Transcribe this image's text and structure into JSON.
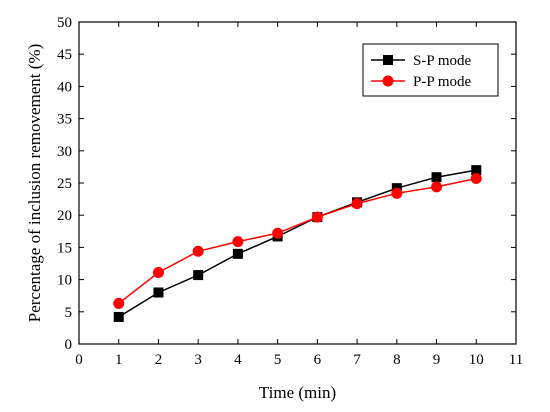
{
  "chart_data": {
    "type": "line",
    "xlabel": "Time (min)",
    "ylabel": "Percentage of inclusion removement (%)",
    "xlim": [
      0,
      11
    ],
    "ylim": [
      0,
      50
    ],
    "xticks": [
      0,
      1,
      2,
      3,
      4,
      5,
      6,
      7,
      8,
      9,
      10,
      11
    ],
    "yticks": [
      0,
      5,
      10,
      15,
      20,
      25,
      30,
      35,
      40,
      45,
      50
    ],
    "grid": false,
    "legend_position": "top-right",
    "series": [
      {
        "name": "S-P mode",
        "color": "#000000",
        "marker": "square",
        "x": [
          1,
          2,
          3,
          4,
          5,
          6,
          7,
          8,
          9,
          10
        ],
        "y": [
          4.2,
          8.0,
          10.7,
          14.0,
          16.7,
          19.7,
          22.0,
          24.2,
          25.9,
          27.0
        ]
      },
      {
        "name": "P-P mode",
        "color": "#ff0000",
        "marker": "circle",
        "x": [
          1,
          2,
          3,
          4,
          5,
          6,
          7,
          8,
          9,
          10
        ],
        "y": [
          6.3,
          11.1,
          14.4,
          15.9,
          17.2,
          19.7,
          21.8,
          23.4,
          24.4,
          25.7
        ]
      }
    ]
  }
}
